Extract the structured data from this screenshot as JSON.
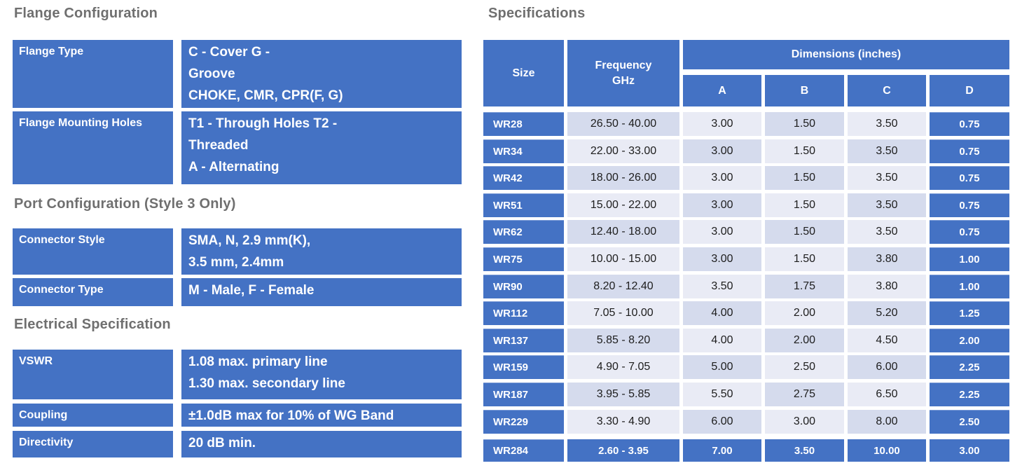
{
  "headings": {
    "flange": "Flange Configuration",
    "port": "Port Configuration (Style 3 Only)",
    "electrical": "Electrical  Specification",
    "specifications": "Specifications"
  },
  "flange_table": {
    "rows": [
      {
        "label": "Flange Type",
        "value_lines": [
          "C - Cover G -",
          "Groove",
          "CHOKE, CMR, CPR(F, G)"
        ]
      },
      {
        "label": "Flange Mounting Holes",
        "value_lines": [
          "T1 - Through Holes T2 -",
          "Threaded",
          "A - Alternating"
        ]
      }
    ]
  },
  "port_table": {
    "rows": [
      {
        "label": "Connector Style",
        "value_lines": [
          "SMA, N, 2.9 mm(K),",
          "3.5 mm, 2.4mm"
        ]
      },
      {
        "label": "Connector Type",
        "value_lines": [
          "M - Male, F - Female"
        ]
      }
    ]
  },
  "electrical_table": {
    "rows": [
      {
        "label": "VSWR",
        "value_lines": [
          "1.08 max. primary line",
          "1.30 max. secondary line"
        ]
      },
      {
        "label": "Coupling",
        "value_lines": [
          "±1.0dB max for 10% of WG Band"
        ]
      },
      {
        "label": "Directivity",
        "value_lines": [
          "20 dB min."
        ]
      }
    ]
  },
  "spec_table": {
    "header": {
      "size": "Size",
      "frequency_line1": "Frequency",
      "frequency_line2": "GHz",
      "dimensions": "Dimensions  (inches)",
      "dim_cols": [
        "A",
        "B",
        "C",
        "D"
      ]
    },
    "rows": [
      {
        "size": "WR28",
        "frequency": "26.50 - 40.00",
        "a": "3.00",
        "b": "1.50",
        "c": "3.50",
        "d": "0.75",
        "highlight": false
      },
      {
        "size": "WR34",
        "frequency": "22.00 - 33.00",
        "a": "3.00",
        "b": "1.50",
        "c": "3.50",
        "d": "0.75",
        "highlight": false
      },
      {
        "size": "WR42",
        "frequency": "18.00 - 26.00",
        "a": "3.00",
        "b": "1.50",
        "c": "3.50",
        "d": "0.75",
        "highlight": false
      },
      {
        "size": "WR51",
        "frequency": "15.00 - 22.00",
        "a": "3.00",
        "b": "1.50",
        "c": "3.50",
        "d": "0.75",
        "highlight": false
      },
      {
        "size": "WR62",
        "frequency": "12.40 - 18.00",
        "a": "3.00",
        "b": "1.50",
        "c": "3.50",
        "d": "0.75",
        "highlight": false
      },
      {
        "size": "WR75",
        "frequency": "10.00 - 15.00",
        "a": "3.00",
        "b": "1.50",
        "c": "3.80",
        "d": "1.00",
        "highlight": false
      },
      {
        "size": "WR90",
        "frequency": "8.20 - 12.40",
        "a": "3.50",
        "b": "1.75",
        "c": "3.80",
        "d": "1.00",
        "highlight": false
      },
      {
        "size": "WR112",
        "frequency": "7.05 - 10.00",
        "a": "4.00",
        "b": "2.00",
        "c": "5.20",
        "d": "1.25",
        "highlight": false
      },
      {
        "size": "WR137",
        "frequency": "5.85 - 8.20",
        "a": "4.00",
        "b": "2.00",
        "c": "4.50",
        "d": "2.00",
        "highlight": false
      },
      {
        "size": "WR159",
        "frequency": "4.90 - 7.05",
        "a": "5.00",
        "b": "2.50",
        "c": "6.00",
        "d": "2.25",
        "highlight": false
      },
      {
        "size": "WR187",
        "frequency": "3.95 - 5.85",
        "a": "5.50",
        "b": "2.75",
        "c": "6.50",
        "d": "2.25",
        "highlight": false
      },
      {
        "size": "WR229",
        "frequency": "3.30 - 4.90",
        "a": "6.00",
        "b": "3.00",
        "c": "8.00",
        "d": "2.50",
        "highlight": false
      },
      {
        "size": "WR284",
        "frequency": "2.60 - 3.95",
        "a": "7.00",
        "b": "3.50",
        "c": "10.00",
        "d": "3.00",
        "highlight": true
      }
    ]
  },
  "colors": {
    "table_blue": "#4472c4",
    "band_dark": "#d5dbed",
    "band_light": "#e9ebf5",
    "heading_gray": "#6f6f6f",
    "body_text": "#1d1d1d"
  }
}
